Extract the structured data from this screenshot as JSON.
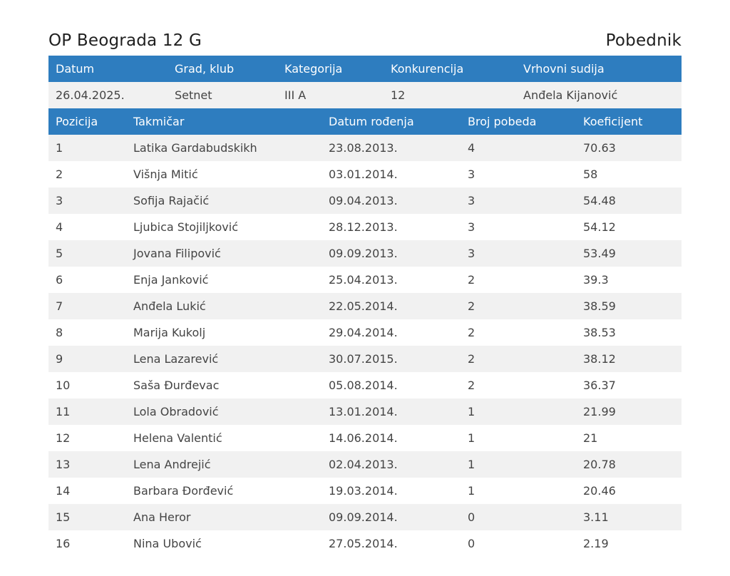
{
  "header": {
    "title": "OP Beograda 12 G",
    "result_label": "Pobednik"
  },
  "meta": {
    "columns": [
      "Datum",
      "Grad, klub",
      "Kategorija",
      "Konkurencija",
      "Vrhovni sudija"
    ],
    "values": [
      "26.04.2025.",
      "Setnet",
      "III A",
      "12",
      "Anđela Kijanović"
    ]
  },
  "results": {
    "columns": [
      "Pozicija",
      "Takmičar",
      "Datum rođenja",
      "Broj pobeda",
      "Koeficijent"
    ],
    "rows": [
      [
        "1",
        "Latika Gardabudskikh",
        "23.08.2013.",
        "4",
        "70.63"
      ],
      [
        "2",
        "Višnja Mitić",
        "03.01.2014.",
        "3",
        "58"
      ],
      [
        "3",
        "Sofija Rajačić",
        "09.04.2013.",
        "3",
        "54.48"
      ],
      [
        "4",
        "Ljubica Stojiljković",
        "28.12.2013.",
        "3",
        "54.12"
      ],
      [
        "5",
        "Jovana Filipović",
        "09.09.2013.",
        "3",
        "53.49"
      ],
      [
        "6",
        "Enja Janković",
        "25.04.2013.",
        "2",
        "39.3"
      ],
      [
        "7",
        "Anđela Lukić",
        "22.05.2014.",
        "2",
        "38.59"
      ],
      [
        "8",
        "Marija Kukolj",
        "29.04.2014.",
        "2",
        "38.53"
      ],
      [
        "9",
        "Lena Lazarević",
        "30.07.2015.",
        "2",
        "38.12"
      ],
      [
        "10",
        "Saša Đurđevac",
        "05.08.2014.",
        "2",
        "36.37"
      ],
      [
        "11",
        "Lola Obradović",
        "13.01.2014.",
        "1",
        "21.99"
      ],
      [
        "12",
        "Helena Valentić",
        "14.06.2014.",
        "1",
        "21"
      ],
      [
        "13",
        "Lena Andrejić",
        "02.04.2013.",
        "1",
        "20.78"
      ],
      [
        "14",
        "Barbara Đorđević",
        "19.03.2014.",
        "1",
        "20.46"
      ],
      [
        "15",
        "Ana Heror",
        "09.09.2014.",
        "0",
        "3.11"
      ],
      [
        "16",
        "Nina Ubović",
        "27.05.2014.",
        "0",
        "2.19"
      ]
    ]
  },
  "colors": {
    "header_bg": "#2e7dbf",
    "stripe_bg": "#f1f1f1"
  }
}
